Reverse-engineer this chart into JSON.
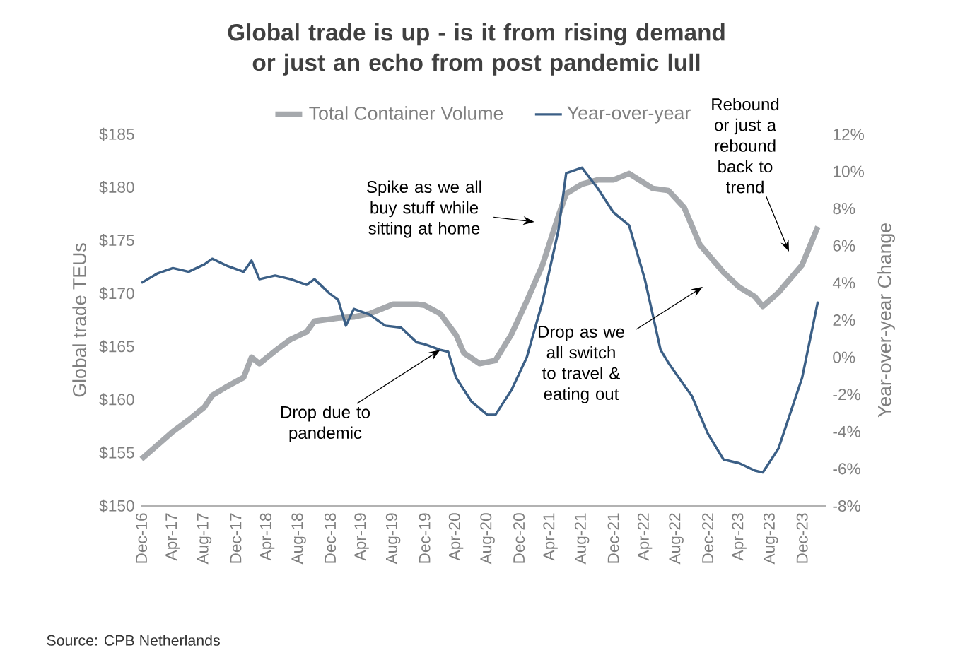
{
  "chart_data": {
    "type": "line",
    "title": "Global trade is up - is it from rising demand or just an echo from post pandemic lull",
    "ylabel": "Global trade TEUs",
    "y2label": "Year-over-year Change",
    "series": [
      {
        "name": "Total Container Volume",
        "color": "#a6a9ad",
        "x": [
          "2016-12",
          "2017-02",
          "2017-04",
          "2017-06",
          "2017-08",
          "2017-09",
          "2017-11",
          "2018-01",
          "2018-02",
          "2018-03",
          "2018-05",
          "2018-07",
          "2018-09",
          "2018-10",
          "2019-01",
          "2019-03",
          "2019-05",
          "2019-06",
          "2019-08",
          "2019-11",
          "2019-12",
          "2020-02",
          "2020-04",
          "2020-05",
          "2020-07",
          "2020-09",
          "2020-11",
          "2021-01",
          "2021-03",
          "2021-05",
          "2021-06",
          "2021-08",
          "2021-10",
          "2021-12",
          "2022-02",
          "2022-05",
          "2022-07",
          "2022-09",
          "2022-11",
          "2023-02",
          "2023-04",
          "2023-06",
          "2023-07",
          "2023-09",
          "2023-12",
          "2024-02"
        ],
        "values": [
          154.4,
          155.7,
          157.0,
          158.1,
          159.3,
          160.4,
          161.3,
          162.1,
          164.0,
          163.4,
          164.6,
          165.7,
          166.4,
          167.4,
          167.7,
          167.8,
          168.1,
          168.4,
          169.0,
          169.0,
          168.9,
          168.1,
          166.1,
          164.4,
          163.4,
          163.7,
          166.1,
          169.3,
          172.7,
          177.3,
          179.4,
          180.3,
          180.7,
          180.7,
          181.3,
          179.9,
          179.7,
          178.1,
          174.6,
          172.0,
          170.6,
          169.7,
          168.8,
          170.1,
          172.7,
          176.3
        ]
      },
      {
        "name": "Year-over-year",
        "color": "#3b5f86",
        "axis": "y2",
        "x": [
          "2016-12",
          "2017-02",
          "2017-04",
          "2017-06",
          "2017-08",
          "2017-09",
          "2017-11",
          "2018-01",
          "2018-02",
          "2018-03",
          "2018-05",
          "2018-07",
          "2018-09",
          "2018-10",
          "2018-12",
          "2019-01",
          "2019-02",
          "2019-03",
          "2019-05",
          "2019-07",
          "2019-09",
          "2019-11",
          "2019-12",
          "2020-02",
          "2020-03",
          "2020-04",
          "2020-06",
          "2020-08",
          "2020-09",
          "2020-11",
          "2021-01",
          "2021-03",
          "2021-05",
          "2021-06",
          "2021-08",
          "2021-10",
          "2021-12",
          "2022-02",
          "2022-04",
          "2022-06",
          "2022-07",
          "2022-10",
          "2022-12",
          "2023-02",
          "2023-04",
          "2023-06",
          "2023-07",
          "2023-09",
          "2023-12",
          "2024-02"
        ],
        "values": [
          4.0,
          4.5,
          4.8,
          4.6,
          5.0,
          5.3,
          4.9,
          4.6,
          5.2,
          4.2,
          4.4,
          4.2,
          3.9,
          4.2,
          3.4,
          3.1,
          1.7,
          2.6,
          2.3,
          1.7,
          1.6,
          0.8,
          0.7,
          0.4,
          0.3,
          -1.1,
          -2.4,
          -3.1,
          -3.1,
          -1.8,
          0.0,
          3.0,
          6.8,
          9.9,
          10.2,
          9.1,
          7.8,
          7.1,
          4.2,
          0.4,
          -0.3,
          -2.1,
          -4.1,
          -5.5,
          -5.7,
          -6.1,
          -6.2,
          -4.9,
          -1.1,
          3.0
        ]
      }
    ],
    "xlim": [
      "2016-12",
      "2024-03"
    ],
    "xticks": [
      {
        "value": "2016-12",
        "label": "Dec-16"
      },
      {
        "value": "2017-04",
        "label": "Apr-17"
      },
      {
        "value": "2017-08",
        "label": "Aug-17"
      },
      {
        "value": "2017-12",
        "label": "Dec-17"
      },
      {
        "value": "2018-04",
        "label": "Apr-18"
      },
      {
        "value": "2018-08",
        "label": "Aug-18"
      },
      {
        "value": "2018-12",
        "label": "Dec-18"
      },
      {
        "value": "2019-04",
        "label": "Apr-19"
      },
      {
        "value": "2019-08",
        "label": "Aug-19"
      },
      {
        "value": "2019-12",
        "label": "Dec-19"
      },
      {
        "value": "2020-04",
        "label": "Apr-20"
      },
      {
        "value": "2020-08",
        "label": "Aug-20"
      },
      {
        "value": "2020-12",
        "label": "Dec-20"
      },
      {
        "value": "2021-04",
        "label": "Apr-21"
      },
      {
        "value": "2021-08",
        "label": "Aug-21"
      },
      {
        "value": "2021-12",
        "label": "Dec-21"
      },
      {
        "value": "2022-04",
        "label": "Apr-22"
      },
      {
        "value": "2022-08",
        "label": "Aug-22"
      },
      {
        "value": "2022-12",
        "label": "Dec-22"
      },
      {
        "value": "2023-04",
        "label": "Apr-23"
      },
      {
        "value": "2023-08",
        "label": "Aug-23"
      },
      {
        "value": "2023-12",
        "label": "Dec-23"
      }
    ],
    "ylim": [
      150,
      185
    ],
    "yticks": [
      {
        "value": 150,
        "label": "$150"
      },
      {
        "value": 155,
        "label": "$155"
      },
      {
        "value": 160,
        "label": "$160"
      },
      {
        "value": 165,
        "label": "$165"
      },
      {
        "value": 170,
        "label": "$170"
      },
      {
        "value": 175,
        "label": "$175"
      },
      {
        "value": 180,
        "label": "$180"
      },
      {
        "value": 185,
        "label": "$185"
      }
    ],
    "y2lim": [
      -8,
      12
    ],
    "y2ticks": [
      {
        "value": -8,
        "label": "-8%"
      },
      {
        "value": -6,
        "label": "-6%"
      },
      {
        "value": -4,
        "label": "-4%"
      },
      {
        "value": -2,
        "label": "-2%"
      },
      {
        "value": 0,
        "label": "0%"
      },
      {
        "value": 2,
        "label": "2%"
      },
      {
        "value": 4,
        "label": "4%"
      },
      {
        "value": 6,
        "label": "6%"
      },
      {
        "value": 8,
        "label": "8%"
      },
      {
        "value": 10,
        "label": "10%"
      },
      {
        "value": 12,
        "label": "12%"
      }
    ],
    "legend": "top",
    "annotations": [
      "Spike as we all buy stuff while sitting at home",
      {
        "text": "Drop due to pandemic",
        "x": "2020-02",
        "y": 164.7
      },
      "Drop as we all switch to travel & eating out",
      "Rebound or just a rebound back to trend",
      "Source: CPB Netherlands"
    ]
  }
}
